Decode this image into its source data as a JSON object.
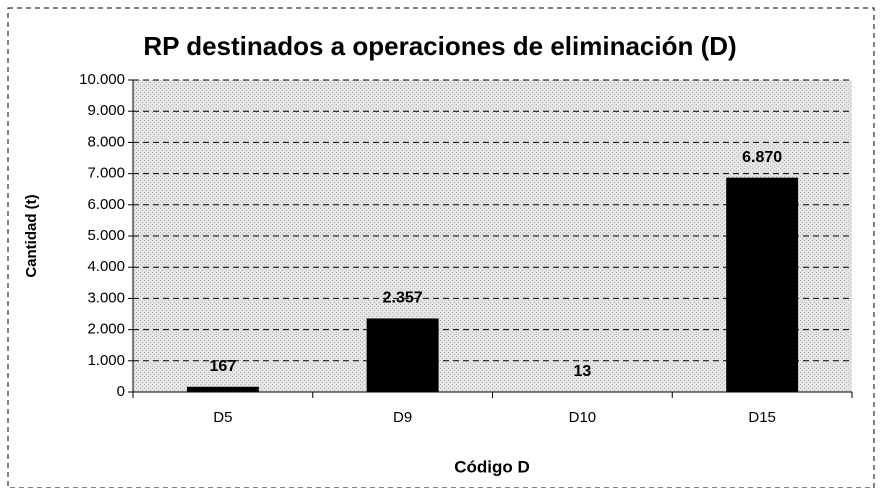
{
  "chart_data": {
    "type": "bar",
    "title": "RP destinados a operaciones de eliminación (D)",
    "x_label": "Código D",
    "y_label": "Cantidad (t)",
    "categories": [
      "D5",
      "D9",
      "D10",
      "D15"
    ],
    "values": [
      167,
      2357,
      13,
      6870
    ],
    "value_labels": [
      "167",
      "2.357",
      "13",
      "6.870"
    ],
    "color": "#000000",
    "ylim": [
      0,
      10000
    ],
    "yticks": [
      0,
      {
        "value": 1000,
        "label": "1.000"
      },
      {
        "value": 2000,
        "label": "2.000"
      },
      {
        "value": 3000,
        "label": "3.000"
      },
      {
        "value": 4000,
        "label": "4.000"
      },
      {
        "value": 5000,
        "label": "5.000"
      },
      {
        "value": 6000,
        "label": "6.000"
      },
      {
        "value": 7000,
        "label": "7.000"
      },
      {
        "value": 8000,
        "label": "8.000"
      },
      {
        "value": 9000,
        "label": "9.000"
      },
      {
        "value": 10000,
        "label": "10.000"
      }
    ],
    "grid": true
  }
}
